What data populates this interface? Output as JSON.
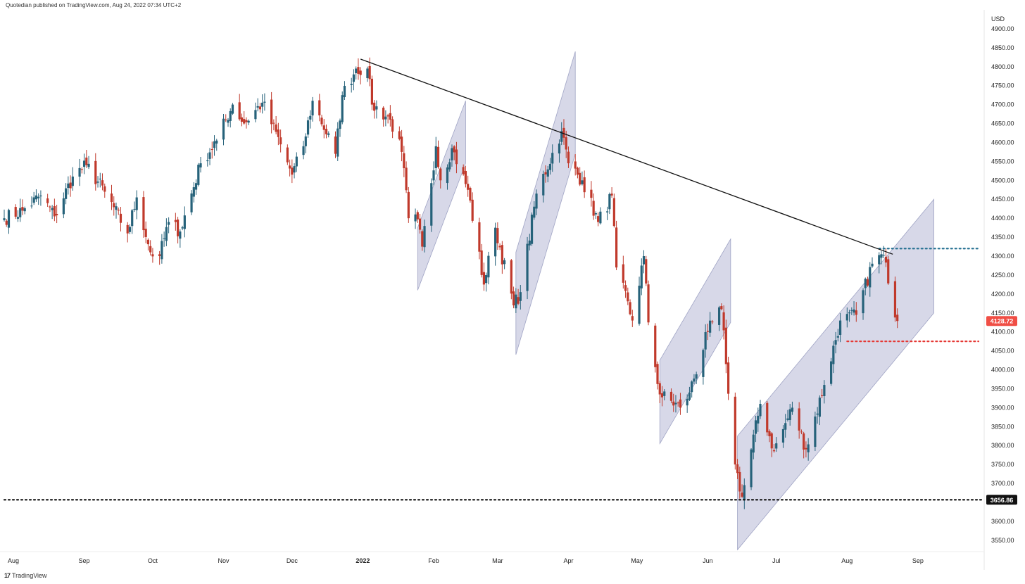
{
  "header": {
    "publisher_line": "Quotedian published on TradingView.com, Aug 24, 2022 07:34 UTC+2"
  },
  "footer": {
    "logo_glyph": "17",
    "brand": "TradingView"
  },
  "colors": {
    "up": "#26627a",
    "down": "#c0392b",
    "channel_fill": "#c9cbe0",
    "channel_stroke": "#9fa3c4",
    "trendline": "#111111",
    "blue_dotted": "#2a7394",
    "red_dotted": "#e53935",
    "black_dotted": "#111111",
    "price_badge": "#f04e45"
  },
  "chart_data": {
    "type": "candlestick",
    "instrument_currency": "USD",
    "y_axis_unit": "USD",
    "ylim": [
      3520,
      4950
    ],
    "y_ticks": [
      3550,
      3600,
      3650,
      3700,
      3750,
      3800,
      3850,
      3900,
      3950,
      4000,
      4050,
      4100,
      4150,
      4200,
      4250,
      4300,
      4350,
      4400,
      4450,
      4500,
      4550,
      4600,
      4650,
      4700,
      4750,
      4800,
      4850,
      4900
    ],
    "y_tick_labels": [
      "3550.00",
      "3600.00",
      "3650.00",
      "3700.00",
      "3750.00",
      "3800.00",
      "3850.00",
      "3900.00",
      "3950.00",
      "4000.00",
      "4050.00",
      "4100.00",
      "4150.00",
      "4200.00",
      "4250.00",
      "4300.00",
      "4350.00",
      "4400.00",
      "4450.00",
      "4500.00",
      "4550.00",
      "4600.00",
      "4650.00",
      "4700.00",
      "4750.00",
      "4800.00",
      "4850.00",
      "4900.00"
    ],
    "x_start": "2021-07-28",
    "x_end": "2022-09-30",
    "x_ticks": [
      {
        "date": "2021-08-01",
        "label": "Aug",
        "bold": false
      },
      {
        "date": "2021-09-01",
        "label": "Sep",
        "bold": false
      },
      {
        "date": "2021-10-01",
        "label": "Oct",
        "bold": false
      },
      {
        "date": "2021-11-01",
        "label": "Nov",
        "bold": false
      },
      {
        "date": "2021-12-01",
        "label": "Dec",
        "bold": false
      },
      {
        "date": "2022-01-01",
        "label": "2022",
        "bold": true
      },
      {
        "date": "2022-02-01",
        "label": "Feb",
        "bold": false
      },
      {
        "date": "2022-03-01",
        "label": "Mar",
        "bold": false
      },
      {
        "date": "2022-04-01",
        "label": "Apr",
        "bold": false
      },
      {
        "date": "2022-05-01",
        "label": "May",
        "bold": false
      },
      {
        "date": "2022-06-01",
        "label": "Jun",
        "bold": false
      },
      {
        "date": "2022-07-01",
        "label": "Jul",
        "bold": false
      },
      {
        "date": "2022-08-01",
        "label": "Aug",
        "bold": false
      },
      {
        "date": "2022-09-01",
        "label": "Sep",
        "bold": false
      }
    ],
    "price_anchors": [
      [
        "2021-07-28",
        4400
      ],
      [
        "2021-08-05",
        4420
      ],
      [
        "2021-08-13",
        4460
      ],
      [
        "2021-08-19",
        4405
      ],
      [
        "2021-08-27",
        4510
      ],
      [
        "2021-09-02",
        4540
      ],
      [
        "2021-09-10",
        4470
      ],
      [
        "2021-09-20",
        4360
      ],
      [
        "2021-09-24",
        4455
      ],
      [
        "2021-09-30",
        4310
      ],
      [
        "2021-10-04",
        4300
      ],
      [
        "2021-10-08",
        4390
      ],
      [
        "2021-10-13",
        4365
      ],
      [
        "2021-10-22",
        4545
      ],
      [
        "2021-10-29",
        4605
      ],
      [
        "2021-11-05",
        4700
      ],
      [
        "2021-11-10",
        4650
      ],
      [
        "2021-11-18",
        4705
      ],
      [
        "2021-11-26",
        4595
      ],
      [
        "2021-12-01",
        4515
      ],
      [
        "2021-12-06",
        4590
      ],
      [
        "2021-12-10",
        4710
      ],
      [
        "2021-12-20",
        4570
      ],
      [
        "2021-12-23",
        4725
      ],
      [
        "2021-12-29",
        4795
      ],
      [
        "2022-01-03",
        4795
      ],
      [
        "2022-01-05",
        4700
      ],
      [
        "2022-01-13",
        4660
      ],
      [
        "2022-01-18",
        4575
      ],
      [
        "2022-01-21",
        4400
      ],
      [
        "2022-01-24",
        4410
      ],
      [
        "2022-01-27",
        4325
      ],
      [
        "2022-02-02",
        4590
      ],
      [
        "2022-02-04",
        4500
      ],
      [
        "2022-02-09",
        4585
      ],
      [
        "2022-02-16",
        4475
      ],
      [
        "2022-02-23",
        4225
      ],
      [
        "2022-02-28",
        4375
      ],
      [
        "2022-03-08",
        4170
      ],
      [
        "2022-03-11",
        4205
      ],
      [
        "2022-03-18",
        4465
      ],
      [
        "2022-03-29",
        4630
      ],
      [
        "2022-04-01",
        4545
      ],
      [
        "2022-04-07",
        4500
      ],
      [
        "2022-04-14",
        4390
      ],
      [
        "2022-04-20",
        4460
      ],
      [
        "2022-04-22",
        4270
      ],
      [
        "2022-04-29",
        4130
      ],
      [
        "2022-05-04",
        4300
      ],
      [
        "2022-05-06",
        4125
      ],
      [
        "2022-05-11",
        3935
      ],
      [
        "2022-05-20",
        3900
      ],
      [
        "2022-05-24",
        3940
      ],
      [
        "2022-06-01",
        4100
      ],
      [
        "2022-06-07",
        4160
      ],
      [
        "2022-06-09",
        4015
      ],
      [
        "2022-06-13",
        3750
      ],
      [
        "2022-06-16",
        3665
      ],
      [
        "2022-06-24",
        3910
      ],
      [
        "2022-06-30",
        3785
      ],
      [
        "2022-07-08",
        3900
      ],
      [
        "2022-07-14",
        3790
      ],
      [
        "2022-07-22",
        3960
      ],
      [
        "2022-07-29",
        4130
      ],
      [
        "2022-08-05",
        4145
      ],
      [
        "2022-08-12",
        4280
      ],
      [
        "2022-08-16",
        4305
      ],
      [
        "2022-08-18",
        4283
      ],
      [
        "2022-08-19",
        4228
      ],
      [
        "2022-08-22",
        4138
      ],
      [
        "2022-08-23",
        4128.72
      ]
    ],
    "trendline": {
      "from": [
        "2021-12-31",
        4820
      ],
      "to": [
        "2022-08-21",
        4305
      ]
    },
    "channels": [
      {
        "from_lower": [
          "2022-01-25",
          4210
        ],
        "to_lower": [
          "2022-02-15",
          4545
        ],
        "width": 165
      },
      {
        "from_lower": [
          "2022-03-09",
          4040
        ],
        "to_lower": [
          "2022-04-04",
          4570
        ],
        "width": 270
      },
      {
        "from_lower": [
          "2022-05-11",
          3805
        ],
        "to_lower": [
          "2022-06-11",
          4125
        ],
        "width": 220
      },
      {
        "from_lower": [
          "2022-06-14",
          3525
        ],
        "to_lower": [
          "2022-09-08",
          4150
        ],
        "width": 300
      }
    ],
    "horizontal_levels": [
      {
        "value": 4320,
        "style": "dotted",
        "color_key": "blue_dotted",
        "from": "2022-08-15"
      },
      {
        "value": 4075,
        "style": "dotted",
        "color_key": "red_dotted",
        "from": "2022-08-01"
      },
      {
        "value": 3656.86,
        "style": "dotted",
        "color_key": "black_dotted",
        "from": "2021-07-28"
      }
    ],
    "price_labels": [
      {
        "value": 4128.72,
        "text": "4128.72",
        "color_key": "price_badge"
      },
      {
        "value": 3656.86,
        "text": "3656.86",
        "color_key": "black_dotted"
      }
    ]
  }
}
